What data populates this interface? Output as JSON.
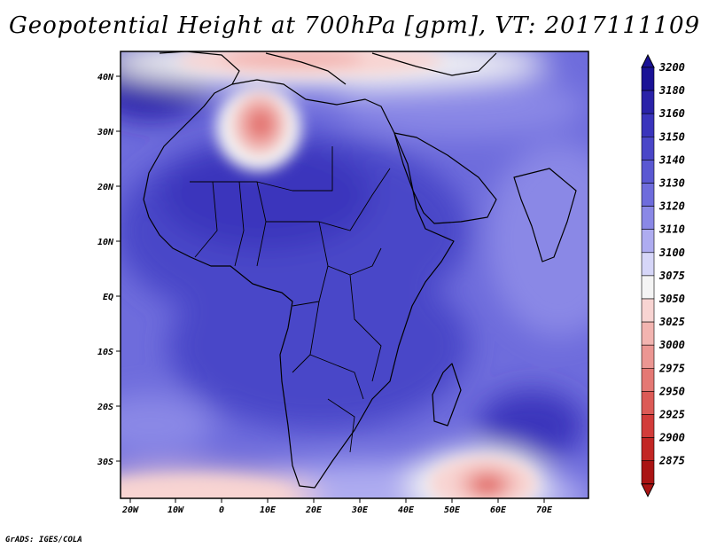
{
  "title": "Geopotential Height at 700hPa [gpm], VT: 2017111109",
  "credit": "GrADS: IGES/COLA",
  "lat_labels": [
    "40N",
    "30N",
    "20N",
    "10N",
    "EQ",
    "10S",
    "20S",
    "30S"
  ],
  "lon_labels": [
    "20W",
    "10W",
    "0",
    "10E",
    "20E",
    "30E",
    "40E",
    "50E",
    "60E",
    "70E"
  ],
  "colorbar": {
    "levels": [
      "3200",
      "3180",
      "3160",
      "3150",
      "3140",
      "3130",
      "3120",
      "3110",
      "3100",
      "3075",
      "3050",
      "3025",
      "3000",
      "2975",
      "2950",
      "2925",
      "2900",
      "2875"
    ],
    "colors": [
      "#1a1296",
      "#2a22a8",
      "#3a34bc",
      "#4a46c8",
      "#5a58d2",
      "#6e6cdc",
      "#8a88e6",
      "#aeacf0",
      "#d6d6f8",
      "#f4f4f4",
      "#f8d4d2",
      "#f2b4b0",
      "#eb9692",
      "#e47874",
      "#dc5a56",
      "#d23c3a",
      "#c22624",
      "#aa1414"
    ]
  }
}
